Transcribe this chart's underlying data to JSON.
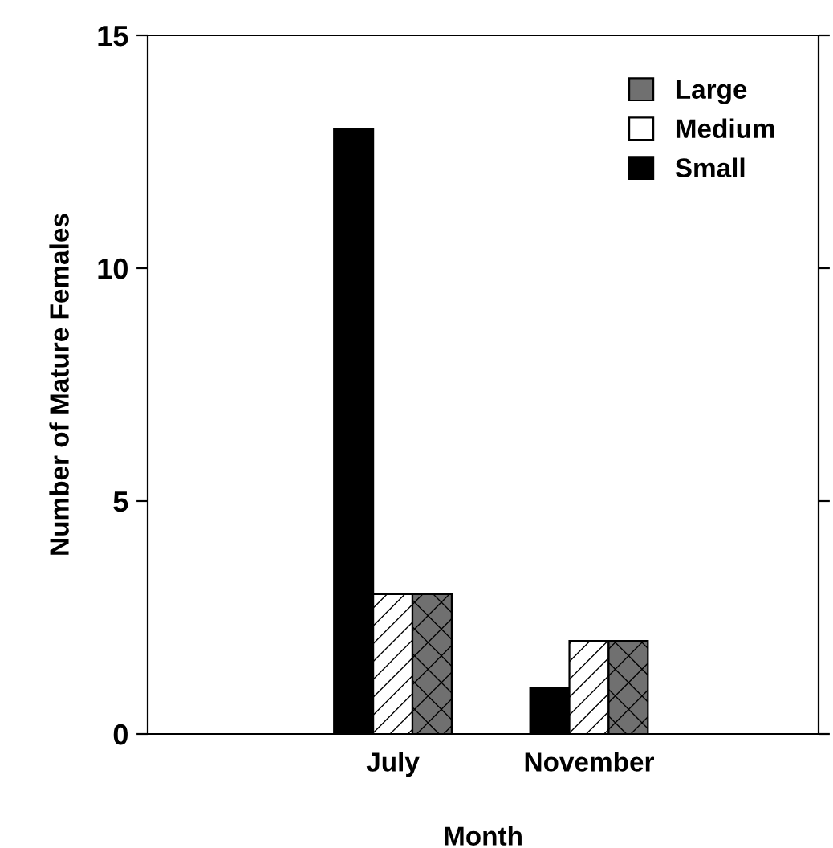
{
  "chart_data": {
    "type": "bar",
    "xlabel": "Month",
    "ylabel": "Number of Mature Females",
    "categories": [
      "July",
      "November"
    ],
    "series": [
      {
        "name": "Small",
        "color": "#000000",
        "values": [
          13,
          1
        ]
      },
      {
        "name": "Medium",
        "color": "#ffffff",
        "values": [
          3,
          2
        ]
      },
      {
        "name": "Large",
        "color": "#707070",
        "values": [
          3,
          2
        ]
      }
    ],
    "ylim": [
      0,
      15
    ],
    "yticks": [
      0,
      5,
      10,
      15
    ],
    "grid": false,
    "legend": "top right"
  }
}
